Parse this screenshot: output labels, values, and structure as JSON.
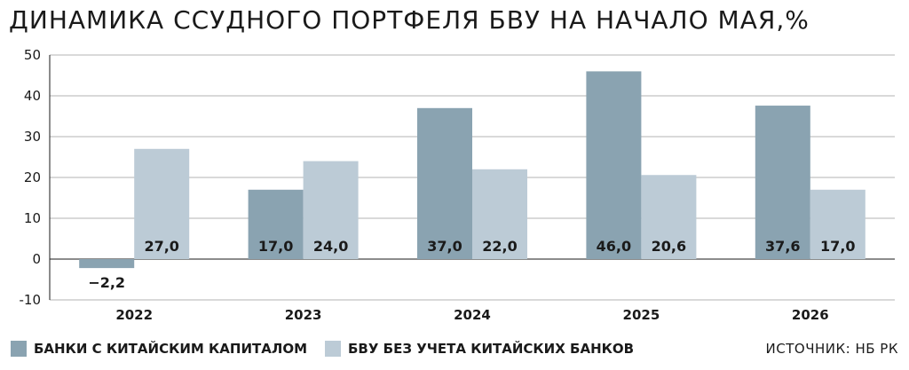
{
  "chart_data": {
    "type": "bar",
    "title": "ДИНАМИКА ССУДНОГО ПОРТФЕЛЯ БВУ НА НАЧАЛО МАЯ,%",
    "categories": [
      "2022",
      "2023",
      "2024",
      "2025",
      "2026"
    ],
    "series": [
      {
        "name": "БАНКИ С КИТАЙСКИМ КАПИТАЛОМ",
        "color": "#8aa3b1",
        "values": [
          -2.2,
          17.0,
          37.0,
          46.0,
          37.6
        ],
        "labels": [
          "−2,2",
          "17,0",
          "37,0",
          "46,0",
          "37,6"
        ]
      },
      {
        "name": "БВУ БЕЗ УЧЕТА КИТАЙСКИХ БАНКОВ",
        "color": "#bccbd6",
        "values": [
          27.0,
          24.0,
          22.0,
          20.6,
          17.0
        ],
        "labels": [
          "27,0",
          "24,0",
          "22,0",
          "20,6",
          "17,0"
        ]
      }
    ],
    "yticks": [
      -10,
      0,
      10,
      20,
      30,
      40,
      50
    ],
    "ylim": [
      -10,
      50
    ],
    "grid": true,
    "legend": "bottom-left"
  },
  "source": "ИСТОЧНИК: НБ РК"
}
